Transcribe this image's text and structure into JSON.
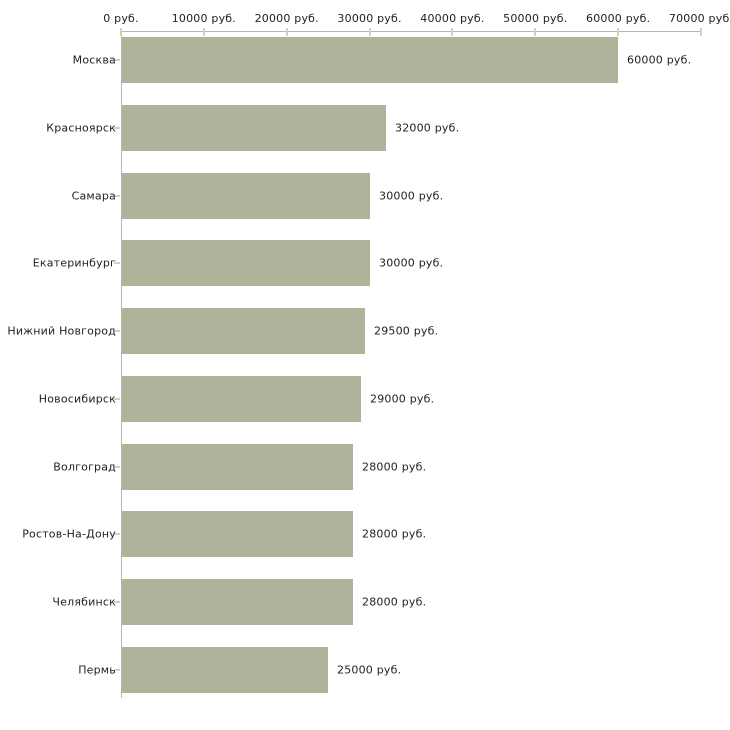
{
  "chart_data": {
    "type": "bar",
    "orientation": "horizontal",
    "title": "",
    "xlabel": "",
    "ylabel": "",
    "unit": "руб.",
    "categories": [
      "Москва",
      "Красноярск",
      "Самара",
      "Екатеринбург",
      "Нижний Новгород",
      "Новосибирск",
      "Волгоград",
      "Ростов-На-Дону",
      "Челябинск",
      "Пермь"
    ],
    "values": [
      60000,
      32000,
      30000,
      30000,
      29500,
      29000,
      28000,
      28000,
      28000,
      25000
    ],
    "value_labels": [
      "60000 руб.",
      "32000 руб.",
      "30000 руб.",
      "30000 руб.",
      "29500 руб.",
      "29000 руб.",
      "28000 руб.",
      "28000 руб.",
      "28000 руб.",
      "25000 руб."
    ],
    "x_ticks": [
      0,
      10000,
      20000,
      30000,
      40000,
      50000,
      60000,
      70000
    ],
    "x_tick_labels": [
      "0 руб.",
      "10000 руб.",
      "20000 руб.",
      "30000 руб.",
      "40000 руб.",
      "50000 руб.",
      "60000 руб.",
      "70000 руб."
    ],
    "xlim": [
      0,
      70000
    ],
    "axis_position": "top",
    "grid": false,
    "legend": false,
    "colors": {
      "bar": "#aeb49a",
      "axis": "#b6b6b6",
      "tick": "#d2d4ae",
      "text": "#222222",
      "background": "#ffffff"
    }
  }
}
